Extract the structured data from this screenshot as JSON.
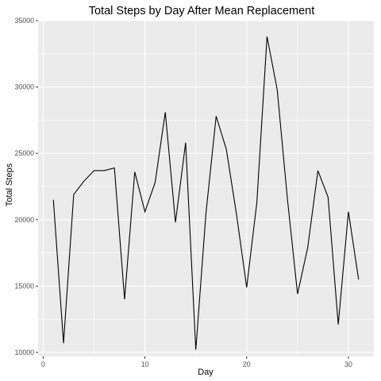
{
  "chart_data": {
    "type": "line",
    "title": "Total Steps by Day After Mean Replacement",
    "xlabel": "Day",
    "ylabel": "Total Steps",
    "xlim": [
      -0.5,
      32.5
    ],
    "ylim": [
      9700,
      35000
    ],
    "x_ticks": [
      0,
      10,
      20,
      30
    ],
    "x_tick_labels": [
      "0",
      "10",
      "20",
      "30"
    ],
    "y_ticks": [
      10000,
      15000,
      20000,
      25000,
      30000,
      35000
    ],
    "y_tick_labels": [
      "10000",
      "15000",
      "20000",
      "25000",
      "30000",
      "35000"
    ],
    "grid": true,
    "panel_background": "#ebebeb",
    "grid_color": "#ffffff",
    "line_color": "#000000",
    "series": [
      {
        "x": [
          1,
          2,
          3,
          4,
          5,
          6,
          7,
          8,
          9,
          10,
          11,
          12,
          13,
          14,
          15,
          16,
          17,
          18,
          19,
          20,
          21,
          22,
          23,
          24,
          25,
          26,
          27,
          28,
          29,
          30,
          31
        ],
        "values": [
          21500,
          10700,
          21900,
          22900,
          23700,
          23700,
          23900,
          14000,
          23600,
          20600,
          22800,
          28100,
          19800,
          25800,
          10200,
          20500,
          27800,
          25300,
          20400,
          14900,
          21300,
          33800,
          29800,
          21600,
          14400,
          17900,
          23700,
          21700,
          12100,
          20600,
          15500
        ]
      }
    ]
  }
}
